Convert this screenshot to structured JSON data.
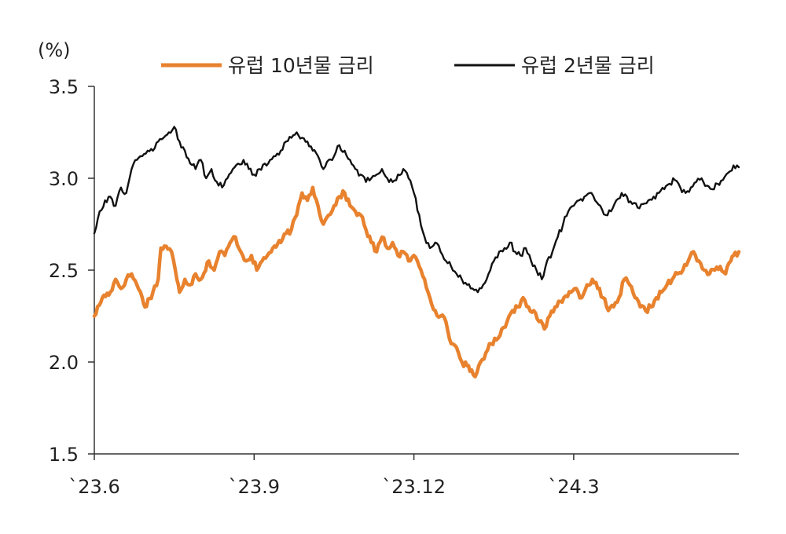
{
  "chart_data": {
    "type": "line",
    "unit_label": "(%)",
    "ylim": [
      1.5,
      3.5
    ],
    "yticks": [
      "1.5",
      "2.0",
      "2.5",
      "3.0",
      "3.5"
    ],
    "ytick_values": [
      1.5,
      2.0,
      2.5,
      3.0,
      3.5
    ],
    "x_tick_labels": [
      "`23.6",
      "`23.9",
      "`23.12",
      "`24.3"
    ],
    "x_tick_positions": [
      0,
      3,
      6,
      9
    ],
    "x_range": [
      0,
      12.1
    ],
    "grid": false,
    "legend_position": "top",
    "series": [
      {
        "name": "유럽 10년물 금리",
        "color": "#E8822E",
        "knots": [
          [
            0,
            2.25
          ],
          [
            0.15,
            2.35
          ],
          [
            0.3,
            2.38
          ],
          [
            0.4,
            2.45
          ],
          [
            0.5,
            2.4
          ],
          [
            0.6,
            2.45
          ],
          [
            0.7,
            2.48
          ],
          [
            0.8,
            2.42
          ],
          [
            0.9,
            2.35
          ],
          [
            0.95,
            2.3
          ],
          [
            1.1,
            2.38
          ],
          [
            1.2,
            2.45
          ],
          [
            1.25,
            2.62
          ],
          [
            1.35,
            2.63
          ],
          [
            1.45,
            2.6
          ],
          [
            1.55,
            2.45
          ],
          [
            1.6,
            2.38
          ],
          [
            1.7,
            2.45
          ],
          [
            1.8,
            2.42
          ],
          [
            1.9,
            2.48
          ],
          [
            2.0,
            2.45
          ],
          [
            2.15,
            2.55
          ],
          [
            2.25,
            2.5
          ],
          [
            2.35,
            2.6
          ],
          [
            2.45,
            2.58
          ],
          [
            2.55,
            2.65
          ],
          [
            2.65,
            2.68
          ],
          [
            2.75,
            2.6
          ],
          [
            2.85,
            2.55
          ],
          [
            2.95,
            2.58
          ],
          [
            3.05,
            2.5
          ],
          [
            3.15,
            2.55
          ],
          [
            3.25,
            2.58
          ],
          [
            3.35,
            2.62
          ],
          [
            3.5,
            2.65
          ],
          [
            3.6,
            2.7
          ],
          [
            3.7,
            2.72
          ],
          [
            3.8,
            2.8
          ],
          [
            3.9,
            2.92
          ],
          [
            4.0,
            2.88
          ],
          [
            4.1,
            2.95
          ],
          [
            4.2,
            2.85
          ],
          [
            4.3,
            2.75
          ],
          [
            4.4,
            2.8
          ],
          [
            4.5,
            2.85
          ],
          [
            4.6,
            2.9
          ],
          [
            4.7,
            2.92
          ],
          [
            4.8,
            2.85
          ],
          [
            4.9,
            2.82
          ],
          [
            5.0,
            2.8
          ],
          [
            5.1,
            2.72
          ],
          [
            5.2,
            2.65
          ],
          [
            5.3,
            2.6
          ],
          [
            5.4,
            2.68
          ],
          [
            5.5,
            2.62
          ],
          [
            5.6,
            2.65
          ],
          [
            5.7,
            2.58
          ],
          [
            5.8,
            2.6
          ],
          [
            5.9,
            2.55
          ],
          [
            6.0,
            2.58
          ],
          [
            6.1,
            2.52
          ],
          [
            6.2,
            2.45
          ],
          [
            6.3,
            2.35
          ],
          [
            6.4,
            2.28
          ],
          [
            6.5,
            2.25
          ],
          [
            6.6,
            2.22
          ],
          [
            6.7,
            2.1
          ],
          [
            6.8,
            2.08
          ],
          [
            6.9,
            2.0
          ],
          [
            7.0,
            1.98
          ],
          [
            7.05,
            1.95
          ],
          [
            7.15,
            1.92
          ],
          [
            7.25,
            2.0
          ],
          [
            7.35,
            2.05
          ],
          [
            7.45,
            2.1
          ],
          [
            7.55,
            2.12
          ],
          [
            7.65,
            2.18
          ],
          [
            7.75,
            2.22
          ],
          [
            7.85,
            2.28
          ],
          [
            7.95,
            2.3
          ],
          [
            8.05,
            2.35
          ],
          [
            8.15,
            2.3
          ],
          [
            8.25,
            2.28
          ],
          [
            8.35,
            2.22
          ],
          [
            8.45,
            2.18
          ],
          [
            8.55,
            2.25
          ],
          [
            8.65,
            2.3
          ],
          [
            8.75,
            2.33
          ],
          [
            8.85,
            2.36
          ],
          [
            8.95,
            2.38
          ],
          [
            9.05,
            2.4
          ],
          [
            9.15,
            2.35
          ],
          [
            9.25,
            2.42
          ],
          [
            9.35,
            2.45
          ],
          [
            9.45,
            2.4
          ],
          [
            9.55,
            2.35
          ],
          [
            9.65,
            2.28
          ],
          [
            9.75,
            2.3
          ],
          [
            9.85,
            2.35
          ],
          [
            9.95,
            2.45
          ],
          [
            10.05,
            2.42
          ],
          [
            10.15,
            2.35
          ],
          [
            10.25,
            2.3
          ],
          [
            10.35,
            2.28
          ],
          [
            10.45,
            2.3
          ],
          [
            10.55,
            2.35
          ],
          [
            10.65,
            2.38
          ],
          [
            10.75,
            2.42
          ],
          [
            10.85,
            2.45
          ],
          [
            10.95,
            2.48
          ],
          [
            11.05,
            2.5
          ],
          [
            11.15,
            2.55
          ],
          [
            11.25,
            2.6
          ],
          [
            11.35,
            2.55
          ],
          [
            11.45,
            2.5
          ],
          [
            11.55,
            2.48
          ],
          [
            11.65,
            2.5
          ],
          [
            11.75,
            2.52
          ],
          [
            11.85,
            2.48
          ],
          [
            11.95,
            2.55
          ],
          [
            12.0,
            2.58
          ],
          [
            12.1,
            2.6
          ]
        ]
      },
      {
        "name": "유럽 2년물 금리",
        "color": "#111111",
        "knots": [
          [
            0,
            2.7
          ],
          [
            0.1,
            2.82
          ],
          [
            0.2,
            2.88
          ],
          [
            0.3,
            2.9
          ],
          [
            0.4,
            2.85
          ],
          [
            0.5,
            2.95
          ],
          [
            0.6,
            2.92
          ],
          [
            0.7,
            3.05
          ],
          [
            0.8,
            3.1
          ],
          [
            0.9,
            3.12
          ],
          [
            1.0,
            3.15
          ],
          [
            1.1,
            3.15
          ],
          [
            1.2,
            3.2
          ],
          [
            1.3,
            3.22
          ],
          [
            1.4,
            3.25
          ],
          [
            1.5,
            3.28
          ],
          [
            1.6,
            3.2
          ],
          [
            1.7,
            3.15
          ],
          [
            1.8,
            3.08
          ],
          [
            1.9,
            3.05
          ],
          [
            2.0,
            3.1
          ],
          [
            2.1,
            3.0
          ],
          [
            2.2,
            3.05
          ],
          [
            2.3,
            2.98
          ],
          [
            2.4,
            2.95
          ],
          [
            2.5,
            3.0
          ],
          [
            2.6,
            3.05
          ],
          [
            2.7,
            3.08
          ],
          [
            2.8,
            3.1
          ],
          [
            2.9,
            3.05
          ],
          [
            3.0,
            3.02
          ],
          [
            3.1,
            3.05
          ],
          [
            3.2,
            3.08
          ],
          [
            3.3,
            3.1
          ],
          [
            3.4,
            3.12
          ],
          [
            3.5,
            3.15
          ],
          [
            3.6,
            3.2
          ],
          [
            3.7,
            3.22
          ],
          [
            3.8,
            3.25
          ],
          [
            3.9,
            3.22
          ],
          [
            4.0,
            3.2
          ],
          [
            4.1,
            3.15
          ],
          [
            4.2,
            3.12
          ],
          [
            4.3,
            3.05
          ],
          [
            4.4,
            3.1
          ],
          [
            4.5,
            3.12
          ],
          [
            4.6,
            3.18
          ],
          [
            4.7,
            3.15
          ],
          [
            4.8,
            3.1
          ],
          [
            4.9,
            3.05
          ],
          [
            5.0,
            3.02
          ],
          [
            5.1,
            2.98
          ],
          [
            5.2,
            3.0
          ],
          [
            5.3,
            3.02
          ],
          [
            5.4,
            3.05
          ],
          [
            5.5,
            3.0
          ],
          [
            5.6,
            2.98
          ],
          [
            5.7,
            3.02
          ],
          [
            5.8,
            3.05
          ],
          [
            5.9,
            3.0
          ],
          [
            6.0,
            2.92
          ],
          [
            6.1,
            2.8
          ],
          [
            6.2,
            2.68
          ],
          [
            6.3,
            2.62
          ],
          [
            6.4,
            2.65
          ],
          [
            6.5,
            2.6
          ],
          [
            6.6,
            2.55
          ],
          [
            6.7,
            2.52
          ],
          [
            6.8,
            2.48
          ],
          [
            6.9,
            2.45
          ],
          [
            7.0,
            2.42
          ],
          [
            7.1,
            2.4
          ],
          [
            7.2,
            2.38
          ],
          [
            7.3,
            2.42
          ],
          [
            7.4,
            2.48
          ],
          [
            7.5,
            2.55
          ],
          [
            7.6,
            2.6
          ],
          [
            7.7,
            2.62
          ],
          [
            7.8,
            2.65
          ],
          [
            7.9,
            2.6
          ],
          [
            8.0,
            2.58
          ],
          [
            8.1,
            2.62
          ],
          [
            8.2,
            2.55
          ],
          [
            8.3,
            2.5
          ],
          [
            8.4,
            2.45
          ],
          [
            8.5,
            2.55
          ],
          [
            8.6,
            2.6
          ],
          [
            8.7,
            2.68
          ],
          [
            8.8,
            2.75
          ],
          [
            8.9,
            2.82
          ],
          [
            9.0,
            2.85
          ],
          [
            9.1,
            2.88
          ],
          [
            9.2,
            2.9
          ],
          [
            9.3,
            2.92
          ],
          [
            9.4,
            2.88
          ],
          [
            9.5,
            2.85
          ],
          [
            9.6,
            2.8
          ],
          [
            9.7,
            2.82
          ],
          [
            9.8,
            2.88
          ],
          [
            9.9,
            2.92
          ],
          [
            10.0,
            2.9
          ],
          [
            10.1,
            2.86
          ],
          [
            10.2,
            2.84
          ],
          [
            10.3,
            2.86
          ],
          [
            10.4,
            2.88
          ],
          [
            10.5,
            2.9
          ],
          [
            10.6,
            2.92
          ],
          [
            10.7,
            2.94
          ],
          [
            10.8,
            2.97
          ],
          [
            10.9,
            2.99
          ],
          [
            11.0,
            2.95
          ],
          [
            11.1,
            2.92
          ],
          [
            11.2,
            2.95
          ],
          [
            11.3,
            2.98
          ],
          [
            11.4,
            3.0
          ],
          [
            11.5,
            2.96
          ],
          [
            11.6,
            2.94
          ],
          [
            11.7,
            2.97
          ],
          [
            11.8,
            2.99
          ],
          [
            11.9,
            3.03
          ],
          [
            12.0,
            3.07
          ],
          [
            12.1,
            3.06
          ]
        ]
      }
    ]
  }
}
